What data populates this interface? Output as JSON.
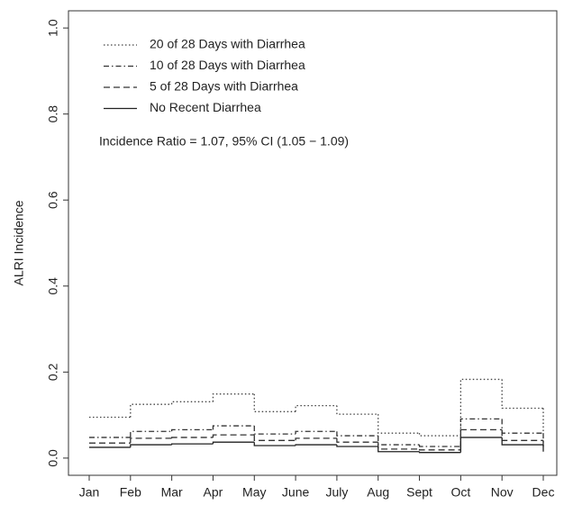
{
  "chart_data": {
    "type": "step",
    "y_label": "ALRI Incidence",
    "annotation": "Incidence Ratio = 1.07, 95% CI (1.05 − 1.09)",
    "categories": [
      "Jan",
      "Feb",
      "Mar",
      "Apr",
      "May",
      "June",
      "July",
      "Aug",
      "Sept",
      "Oct",
      "Nov",
      "Dec"
    ],
    "series": [
      {
        "name": "20 of 28 Days with Diarrhea",
        "color": "#444444",
        "line_style": "dotted",
        "values": [
          0.095,
          0.125,
          0.131,
          0.149,
          0.108,
          0.122,
          0.102,
          0.058,
          0.052,
          0.183,
          0.116,
          0.06
        ]
      },
      {
        "name": "10 of 28 Days with Diarrhea",
        "color": "#333333",
        "line_style": "dashdot",
        "values": [
          0.048,
          0.062,
          0.066,
          0.075,
          0.056,
          0.062,
          0.052,
          0.031,
          0.027,
          0.091,
          0.058,
          0.03
        ]
      },
      {
        "name": "5 of 28 Days with Diarrhea",
        "color": "#333333",
        "line_style": "dashed",
        "values": [
          0.035,
          0.046,
          0.048,
          0.054,
          0.041,
          0.046,
          0.037,
          0.021,
          0.019,
          0.066,
          0.041,
          0.02
        ]
      },
      {
        "name": "No Recent Diarrhea",
        "color": "#222222",
        "line_style": "solid",
        "values": [
          0.025,
          0.031,
          0.033,
          0.037,
          0.029,
          0.031,
          0.027,
          0.015,
          0.013,
          0.048,
          0.031,
          0.015
        ]
      }
    ],
    "ylim": [
      -0.04,
      1.04
    ],
    "yticks": [
      {
        "value": 0,
        "label": "0.0"
      },
      {
        "value": 0.2,
        "label": "0.2"
      },
      {
        "value": 0.4,
        "label": "0.4"
      },
      {
        "value": 0.6,
        "label": "0.6"
      },
      {
        "value": 0.8,
        "label": "0.8"
      },
      {
        "value": 1,
        "label": "1.0"
      }
    ]
  }
}
